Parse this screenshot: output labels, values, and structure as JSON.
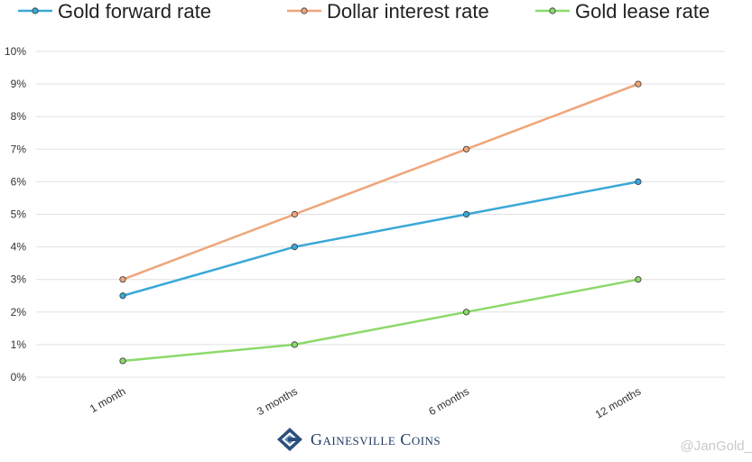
{
  "chart_data": {
    "type": "line",
    "title": "",
    "xlabel": "",
    "ylabel": "",
    "categories": [
      "1 month",
      "3 months",
      "6 months",
      "12 months"
    ],
    "ylim": [
      0,
      10
    ],
    "yticks": [
      "0%",
      "1%",
      "2%",
      "3%",
      "4%",
      "5%",
      "6%",
      "7%",
      "8%",
      "9%",
      "10%"
    ],
    "grid": true,
    "legend_position": "top",
    "series": [
      {
        "name": "Gold forward rate",
        "color": "#3ba8d8",
        "values": [
          2.5,
          4,
          5,
          6
        ]
      },
      {
        "name": "Dollar interest rate",
        "color": "#efa57a",
        "values": [
          3,
          5,
          7,
          9
        ]
      },
      {
        "name": "Gold lease rate",
        "color": "#8cd96a",
        "values": [
          0.5,
          1,
          2,
          3
        ]
      }
    ]
  },
  "branding": {
    "name": "Gainesville Coins",
    "logo_icon": "gainesville-coins-logo-icon"
  },
  "watermark": "@JanGold_",
  "colors": {
    "grid": "#e0e0e0",
    "axis_text": "#333333",
    "brand": "#1f3a5f"
  }
}
